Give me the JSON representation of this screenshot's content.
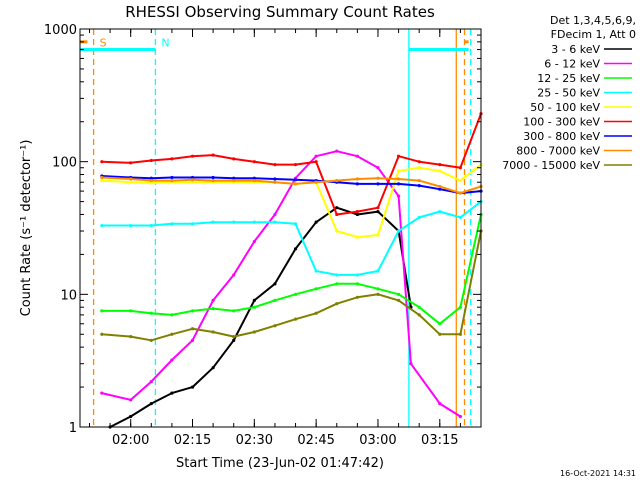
{
  "chart_data": {
    "type": "line",
    "title": "RHESSI Observing Summary Count Rates",
    "xlabel": "Start Time (23-Jun-02 01:47:42)",
    "ylabel": "Count Rate (s⁻¹ detector⁻¹)",
    "y_scale": "log",
    "ylim": [
      1,
      1000
    ],
    "xlim": [
      "01:47:42",
      "03:25:00"
    ],
    "x_ticks": [
      "02:00",
      "02:15",
      "02:30",
      "02:45",
      "03:00",
      "03:15"
    ],
    "y_ticks": [
      "1",
      "10",
      "100",
      "1000"
    ],
    "grid": false,
    "legend_position": "right",
    "legend_header": [
      "Det 1,3,4,5,6,9,",
      "FDecim 1, Att 0"
    ],
    "timestamp": "16-Oct-2021 14:31",
    "series": [
      {
        "name": "3 - 6 keV",
        "color": "#000000",
        "x": [
          "01:55",
          "02:00",
          "02:05",
          "02:10",
          "02:15",
          "02:20",
          "02:25",
          "02:30",
          "02:35",
          "02:40",
          "02:45",
          "02:50",
          "02:55",
          "03:00",
          "03:05",
          "03:08"
        ],
        "y": [
          1,
          1.2,
          1.5,
          1.8,
          2.0,
          2.8,
          4.5,
          9,
          12,
          22,
          35,
          45,
          40,
          42,
          30,
          8
        ]
      },
      {
        "name": "6 - 12 keV",
        "color": "#ff00ff",
        "x": [
          "01:53",
          "02:00",
          "02:05",
          "02:10",
          "02:15",
          "02:20",
          "02:25",
          "02:30",
          "02:35",
          "02:40",
          "02:45",
          "02:50",
          "02:55",
          "03:00",
          "03:05",
          "03:08",
          "03:15",
          "03:20"
        ],
        "y": [
          1.8,
          1.6,
          2.2,
          3.2,
          4.5,
          9,
          14,
          25,
          40,
          75,
          110,
          120,
          110,
          90,
          55,
          3,
          1.5,
          1.2
        ]
      },
      {
        "name": "12 - 25 keV",
        "color": "#00ff00",
        "x": [
          "01:53",
          "02:00",
          "02:05",
          "02:10",
          "02:15",
          "02:20",
          "02:25",
          "02:30",
          "02:35",
          "02:40",
          "02:45",
          "02:50",
          "02:55",
          "03:00",
          "03:05",
          "03:10",
          "03:15",
          "03:20",
          "03:25"
        ],
        "y": [
          7.5,
          7.5,
          7.2,
          7,
          7.5,
          7.8,
          7.5,
          8,
          9,
          10,
          11,
          12,
          12,
          11,
          10,
          8,
          6,
          8,
          40
        ]
      },
      {
        "name": "25 - 50 keV",
        "color": "#00ffff",
        "x": [
          "01:53",
          "02:00",
          "02:05",
          "02:10",
          "02:15",
          "02:20",
          "02:25",
          "02:30",
          "02:35",
          "02:40",
          "02:45",
          "02:50",
          "02:55",
          "03:00",
          "03:05",
          "03:10",
          "03:15",
          "03:20",
          "03:25"
        ],
        "y": [
          33,
          33,
          33,
          34,
          34,
          35,
          35,
          35,
          35,
          34,
          15,
          14,
          14,
          15,
          30,
          38,
          42,
          38,
          50
        ]
      },
      {
        "name": "50 - 100 keV",
        "color": "#ffff00",
        "x": [
          "01:53",
          "02:00",
          "02:05",
          "02:10",
          "02:15",
          "02:20",
          "02:25",
          "02:30",
          "02:35",
          "02:40",
          "02:45",
          "02:50",
          "02:55",
          "03:00",
          "03:05",
          "03:10",
          "03:15",
          "03:20",
          "03:25"
        ],
        "y": [
          72,
          70,
          69,
          70,
          70,
          70,
          70,
          70,
          70,
          68,
          70,
          30,
          27,
          28,
          85,
          90,
          85,
          72,
          95
        ]
      },
      {
        "name": "100 - 300 keV",
        "color": "#ff0000",
        "x": [
          "01:53",
          "02:00",
          "02:05",
          "02:10",
          "02:15",
          "02:20",
          "02:25",
          "02:30",
          "02:35",
          "02:40",
          "02:45",
          "02:50",
          "02:55",
          "03:00",
          "03:05",
          "03:10",
          "03:15",
          "03:20",
          "03:25"
        ],
        "y": [
          100,
          98,
          102,
          105,
          110,
          112,
          105,
          100,
          95,
          95,
          100,
          40,
          42,
          45,
          110,
          100,
          95,
          90,
          230
        ]
      },
      {
        "name": "300 - 800 keV",
        "color": "#0000ff",
        "x": [
          "01:53",
          "02:00",
          "02:05",
          "02:10",
          "02:15",
          "02:20",
          "02:25",
          "02:30",
          "02:35",
          "02:40",
          "02:45",
          "02:50",
          "02:55",
          "03:00",
          "03:05",
          "03:10",
          "03:15",
          "03:20",
          "03:25"
        ],
        "y": [
          78,
          76,
          75,
          76,
          76,
          76,
          75,
          75,
          74,
          73,
          72,
          70,
          68,
          68,
          68,
          66,
          62,
          58,
          60
        ]
      },
      {
        "name": "800 - 7000 keV",
        "color": "#ff8c00",
        "x": [
          "01:53",
          "02:00",
          "02:05",
          "02:10",
          "02:15",
          "02:20",
          "02:25",
          "02:30",
          "02:35",
          "02:40",
          "02:45",
          "02:50",
          "02:55",
          "03:00",
          "03:05",
          "03:10",
          "03:15",
          "03:20",
          "03:25"
        ],
        "y": [
          76,
          74,
          72,
          72,
          73,
          72,
          72,
          72,
          70,
          68,
          70,
          72,
          74,
          75,
          74,
          72,
          65,
          58,
          65
        ]
      },
      {
        "name": "7000 - 15000 keV",
        "color": "#808000",
        "x": [
          "01:53",
          "02:00",
          "02:05",
          "02:10",
          "02:15",
          "02:20",
          "02:25",
          "02:30",
          "02:35",
          "02:40",
          "02:45",
          "02:50",
          "02:55",
          "03:00",
          "03:05",
          "03:10",
          "03:15",
          "03:20",
          "03:25"
        ],
        "y": [
          5,
          4.8,
          4.5,
          5,
          5.5,
          5.2,
          4.8,
          5.2,
          5.8,
          6.5,
          7.2,
          8.5,
          9.5,
          10,
          9,
          7,
          5,
          5,
          30
        ]
      }
    ],
    "annotations": [
      {
        "label": "S",
        "color": "#ff8c00",
        "time": "01:51:00"
      },
      {
        "label": "N",
        "color": "#00ffff",
        "time": "02:06:00"
      }
    ],
    "vertical_markers": [
      {
        "time": "01:51:00",
        "color": "#ff8c00",
        "style": "dashed"
      },
      {
        "time": "02:06:00",
        "color": "#00ffff",
        "style": "dashed"
      },
      {
        "time": "03:07:30",
        "color": "#00ffff",
        "style": "solid"
      },
      {
        "time": "03:19:00",
        "color": "#ff8c00",
        "style": "solid"
      },
      {
        "time": "03:21:00",
        "color": "#ff8c00",
        "style": "dashed"
      },
      {
        "time": "03:22:30",
        "color": "#00ffff",
        "style": "dashed"
      }
    ],
    "segments": [
      {
        "color": "#00ffff",
        "from": "01:47:42",
        "to": "02:06:00",
        "y": 700
      },
      {
        "color": "#00ffff",
        "from": "03:07:30",
        "to": "03:22:00",
        "y": 700
      },
      {
        "color": "#ff8c00",
        "from": "01:47:42",
        "to": "01:49:30",
        "y": 800
      },
      {
        "color": "#ff8c00",
        "from": "03:21:00",
        "to": "03:22:00",
        "y": 800
      }
    ]
  }
}
